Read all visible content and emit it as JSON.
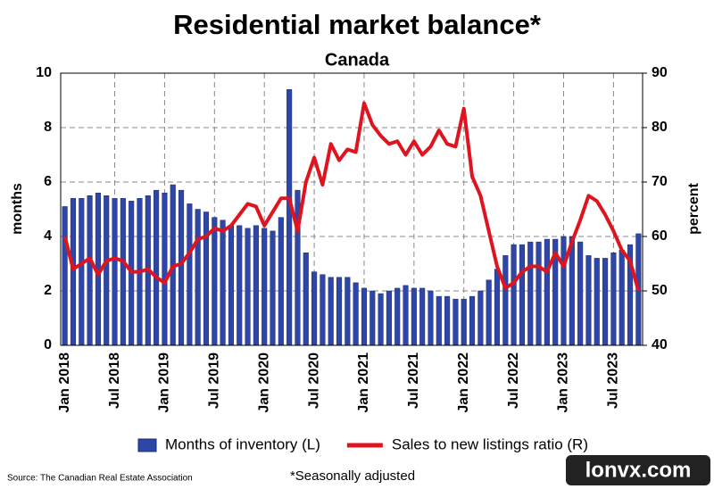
{
  "chart_data": {
    "type": "bar-line",
    "title": "Residential market balance*",
    "subtitle": "Canada",
    "y_label": "months",
    "y2_label": "percent",
    "categories": [
      "Jan 2018",
      null,
      null,
      null,
      null,
      null,
      "Jul 2018",
      null,
      null,
      null,
      null,
      null,
      "Jan 2019",
      null,
      null,
      null,
      null,
      null,
      "Jul 2019",
      null,
      null,
      null,
      null,
      null,
      "Jan 2020",
      null,
      null,
      null,
      null,
      null,
      "Jul 2020",
      null,
      null,
      null,
      null,
      null,
      "Jan 2021",
      null,
      null,
      null,
      null,
      null,
      "Jul 2021",
      null,
      null,
      null,
      null,
      null,
      "Jan 2022",
      null,
      null,
      null,
      null,
      null,
      "Jul 2022",
      null,
      null,
      null,
      null,
      null,
      "Jan 2023",
      null,
      null,
      null,
      null,
      null,
      "Jul 2023",
      null,
      null,
      null
    ],
    "series": [
      {
        "name": "Months of inventory (L)",
        "type": "bar",
        "axis": "y",
        "color": "#2e46a8",
        "values": [
          5.1,
          5.4,
          5.4,
          5.5,
          5.6,
          5.5,
          5.4,
          5.4,
          5.3,
          5.4,
          5.5,
          5.7,
          5.6,
          5.9,
          5.7,
          5.2,
          5.0,
          4.9,
          4.7,
          4.6,
          4.4,
          4.4,
          4.3,
          4.4,
          4.3,
          4.2,
          4.7,
          9.4,
          5.7,
          3.4,
          2.7,
          2.6,
          2.5,
          2.5,
          2.5,
          2.3,
          2.1,
          2.0,
          1.9,
          2.0,
          2.1,
          2.2,
          2.1,
          2.1,
          2.0,
          1.8,
          1.8,
          1.7,
          1.7,
          1.8,
          2.0,
          2.4,
          2.8,
          3.3,
          3.7,
          3.7,
          3.8,
          3.8,
          3.9,
          3.9,
          4.0,
          4.0,
          3.8,
          3.3,
          3.2,
          3.2,
          3.4,
          3.5,
          3.7,
          4.1
        ]
      },
      {
        "name": "Sales to new listings ratio (R)",
        "type": "line",
        "axis": "y2",
        "color": "#e0141e",
        "values": [
          60,
          54,
          55,
          56,
          53,
          55.5,
          56,
          55.5,
          53.5,
          53.5,
          54,
          52.5,
          51.5,
          54.5,
          55,
          57,
          59.5,
          60,
          61.5,
          61,
          62,
          64,
          66,
          65.5,
          62,
          64.5,
          67,
          67,
          61,
          70,
          74.5,
          69.5,
          77,
          74,
          76,
          75.5,
          84.5,
          80.5,
          78.5,
          77,
          77.5,
          75,
          77.5,
          75,
          76.5,
          79.5,
          77,
          76.5,
          83.5,
          71,
          67.5,
          61,
          54.5,
          50.5,
          51.5,
          53.5,
          54.5,
          54.5,
          53.5,
          57,
          54.5,
          59,
          63,
          67.5,
          66.5,
          64,
          61,
          57.5,
          55.5,
          50
        ]
      }
    ],
    "ylim": [
      0,
      10
    ],
    "yticks": [
      0,
      2,
      4,
      6,
      8,
      10
    ],
    "y2lim": [
      40,
      90
    ],
    "y2ticks": [
      40,
      50,
      60,
      70,
      80,
      90
    ],
    "grid": true,
    "legend": "bottom",
    "source": "Source: The Canadian Real Estate Association",
    "footnote": "*Seasonally adjusted",
    "watermark": "lonvx.com"
  }
}
